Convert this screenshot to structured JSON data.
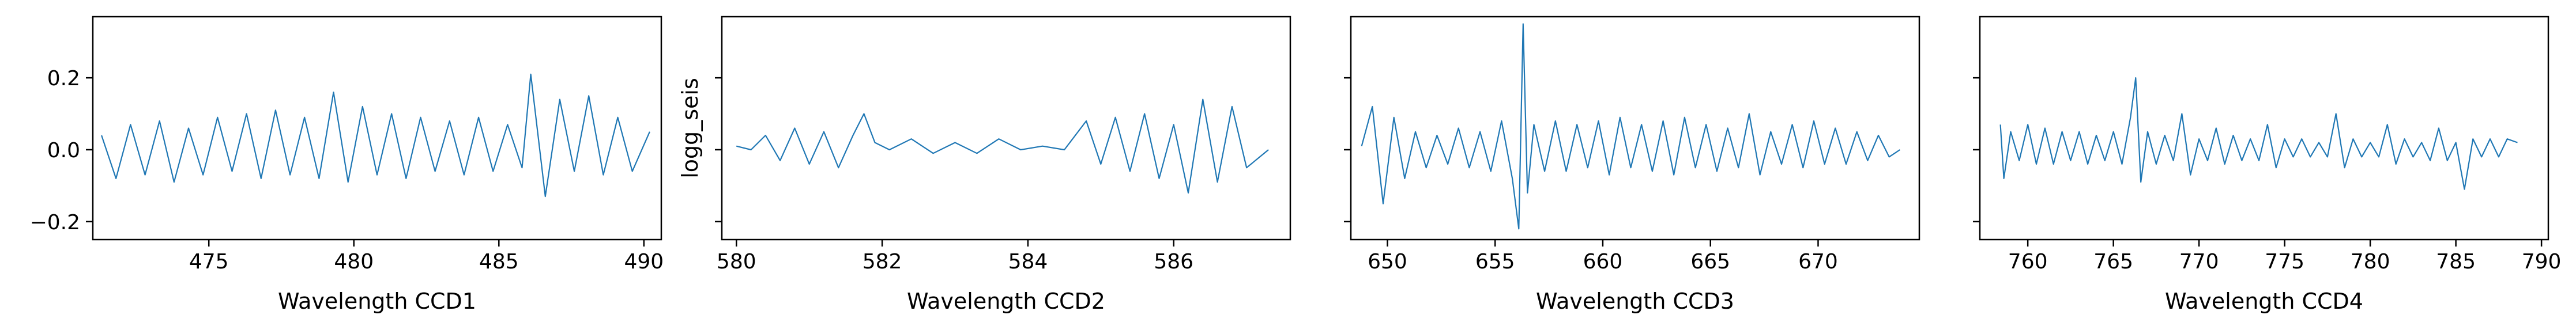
{
  "chart_data": [
    {
      "type": "line",
      "xlabel": "Wavelength CCD1",
      "ylabel": "",
      "xlim": [
        471.0,
        490.6
      ],
      "ylim": [
        -0.25,
        0.37
      ],
      "xticks": [
        475,
        480,
        485,
        490
      ],
      "xtick_labels": [
        "475",
        "480",
        "485",
        "490"
      ],
      "yticks": [
        -0.2,
        0.0,
        0.2
      ],
      "ytick_labels": [
        "−0.2",
        "0.0",
        "0.2"
      ],
      "ytick_labels_visible": true,
      "grid": false,
      "color": "#1f77b4",
      "series": [
        {
          "x": [
            471.3,
            471.8,
            472.3,
            472.8,
            473.3,
            473.8,
            474.3,
            474.8,
            475.3,
            475.8,
            476.3,
            476.8,
            477.3,
            477.8,
            478.3,
            478.8,
            479.3,
            479.8,
            480.3,
            480.8,
            481.3,
            481.8,
            482.3,
            482.8,
            483.3,
            483.8,
            484.3,
            484.8,
            485.3,
            485.8,
            486.1,
            486.6,
            487.1,
            487.6,
            488.1,
            488.6,
            489.1,
            489.6,
            490.2
          ],
          "y": [
            0.04,
            -0.08,
            0.07,
            -0.07,
            0.08,
            -0.09,
            0.06,
            -0.07,
            0.09,
            -0.06,
            0.1,
            -0.08,
            0.11,
            -0.07,
            0.09,
            -0.08,
            0.16,
            -0.09,
            0.12,
            -0.07,
            0.1,
            -0.08,
            0.09,
            -0.06,
            0.08,
            -0.07,
            0.09,
            -0.06,
            0.07,
            -0.05,
            0.21,
            -0.13,
            0.14,
            -0.06,
            0.15,
            -0.07,
            0.09,
            -0.06,
            0.05
          ]
        }
      ]
    },
    {
      "type": "line",
      "xlabel": "Wavelength CCD2",
      "ylabel": "logg_seis",
      "xlim": [
        579.8,
        587.6
      ],
      "ylim": [
        -0.25,
        0.37
      ],
      "xticks": [
        580,
        582,
        584,
        586
      ],
      "xtick_labels": [
        "580",
        "582",
        "584",
        "586"
      ],
      "yticks": [
        -0.2,
        0.0,
        0.2
      ],
      "ytick_labels": [
        "−0.2",
        "0.0",
        "0.2"
      ],
      "ytick_labels_visible": false,
      "grid": false,
      "color": "#1f77b4",
      "series": [
        {
          "x": [
            580.0,
            580.2,
            580.4,
            580.6,
            580.8,
            581.0,
            581.2,
            581.4,
            581.6,
            581.75,
            581.9,
            582.1,
            582.4,
            582.7,
            583.0,
            583.3,
            583.6,
            583.9,
            584.2,
            584.5,
            584.8,
            585.0,
            585.2,
            585.4,
            585.6,
            585.8,
            586.0,
            586.2,
            586.4,
            586.6,
            586.8,
            587.0,
            587.3
          ],
          "y": [
            0.01,
            0.0,
            0.04,
            -0.03,
            0.06,
            -0.04,
            0.05,
            -0.05,
            0.04,
            0.1,
            0.02,
            0.0,
            0.03,
            -0.01,
            0.02,
            -0.01,
            0.03,
            0.0,
            0.01,
            0.0,
            0.08,
            -0.04,
            0.09,
            -0.06,
            0.1,
            -0.08,
            0.07,
            -0.12,
            0.14,
            -0.09,
            0.12,
            -0.05,
            0.0
          ]
        }
      ]
    },
    {
      "type": "line",
      "xlabel": "Wavelength CCD3",
      "ylabel": "",
      "xlim": [
        648.3,
        674.7
      ],
      "ylim": [
        -0.25,
        0.37
      ],
      "xticks": [
        650,
        655,
        660,
        665,
        670
      ],
      "xtick_labels": [
        "650",
        "655",
        "660",
        "665",
        "670"
      ],
      "yticks": [
        -0.2,
        0.0,
        0.2
      ],
      "ytick_labels": [
        "−0.2",
        "0.0",
        "0.2"
      ],
      "ytick_labels_visible": false,
      "grid": false,
      "color": "#1f77b4",
      "series": [
        {
          "x": [
            648.8,
            649.3,
            649.8,
            650.3,
            650.8,
            651.3,
            651.8,
            652.3,
            652.8,
            653.3,
            653.8,
            654.3,
            654.8,
            655.3,
            655.8,
            656.1,
            656.3,
            656.5,
            656.8,
            657.3,
            657.8,
            658.3,
            658.8,
            659.3,
            659.8,
            660.3,
            660.8,
            661.3,
            661.8,
            662.3,
            662.8,
            663.3,
            663.8,
            664.3,
            664.8,
            665.3,
            665.8,
            666.3,
            666.8,
            667.3,
            667.8,
            668.3,
            668.8,
            669.3,
            669.8,
            670.3,
            670.8,
            671.3,
            671.8,
            672.3,
            672.8,
            673.3,
            673.8
          ],
          "y": [
            0.01,
            0.12,
            -0.15,
            0.09,
            -0.08,
            0.05,
            -0.05,
            0.04,
            -0.04,
            0.06,
            -0.05,
            0.05,
            -0.06,
            0.08,
            -0.08,
            -0.22,
            0.35,
            -0.12,
            0.07,
            -0.06,
            0.08,
            -0.06,
            0.07,
            -0.05,
            0.08,
            -0.07,
            0.09,
            -0.05,
            0.07,
            -0.06,
            0.08,
            -0.07,
            0.09,
            -0.05,
            0.07,
            -0.06,
            0.06,
            -0.05,
            0.1,
            -0.07,
            0.05,
            -0.04,
            0.07,
            -0.05,
            0.08,
            -0.04,
            0.06,
            -0.04,
            0.05,
            -0.03,
            0.04,
            -0.02,
            0.0
          ]
        }
      ]
    },
    {
      "type": "line",
      "xlabel": "Wavelength CCD4",
      "ylabel": "",
      "xlim": [
        757.2,
        790.4
      ],
      "ylim": [
        -0.25,
        0.37
      ],
      "xticks": [
        760,
        765,
        770,
        775,
        780,
        785,
        790
      ],
      "xtick_labels": [
        "760",
        "765",
        "770",
        "775",
        "780",
        "785",
        "790"
      ],
      "yticks": [
        -0.2,
        0.0,
        0.2
      ],
      "ytick_labels": [
        "−0.2",
        "0.0",
        "0.2"
      ],
      "ytick_labels_visible": false,
      "grid": false,
      "color": "#1f77b4",
      "series": [
        {
          "x": [
            758.4,
            758.6,
            759.0,
            759.5,
            760.0,
            760.5,
            761.0,
            761.5,
            762.0,
            762.5,
            763.0,
            763.5,
            764.0,
            764.5,
            765.0,
            765.5,
            766.0,
            766.3,
            766.6,
            767.0,
            767.5,
            768.0,
            768.5,
            769.0,
            769.5,
            770.0,
            770.5,
            771.0,
            771.5,
            772.0,
            772.5,
            773.0,
            773.5,
            774.0,
            774.5,
            775.0,
            775.5,
            776.0,
            776.5,
            777.0,
            777.5,
            778.0,
            778.5,
            779.0,
            779.5,
            780.0,
            780.5,
            781.0,
            781.5,
            782.0,
            782.5,
            783.0,
            783.5,
            784.0,
            784.5,
            785.0,
            785.5,
            786.0,
            786.5,
            787.0,
            787.5,
            788.0,
            788.6
          ],
          "y": [
            0.07,
            -0.08,
            0.05,
            -0.03,
            0.07,
            -0.04,
            0.06,
            -0.04,
            0.05,
            -0.03,
            0.05,
            -0.04,
            0.04,
            -0.03,
            0.05,
            -0.04,
            0.09,
            0.2,
            -0.09,
            0.05,
            -0.04,
            0.04,
            -0.03,
            0.1,
            -0.07,
            0.03,
            -0.03,
            0.06,
            -0.04,
            0.04,
            -0.03,
            0.03,
            -0.03,
            0.07,
            -0.05,
            0.03,
            -0.02,
            0.03,
            -0.02,
            0.02,
            -0.02,
            0.1,
            -0.05,
            0.03,
            -0.02,
            0.02,
            -0.02,
            0.07,
            -0.04,
            0.03,
            -0.02,
            0.02,
            -0.03,
            0.06,
            -0.03,
            0.02,
            -0.11,
            0.03,
            -0.02,
            0.03,
            -0.02,
            0.03,
            0.02
          ]
        }
      ]
    }
  ]
}
